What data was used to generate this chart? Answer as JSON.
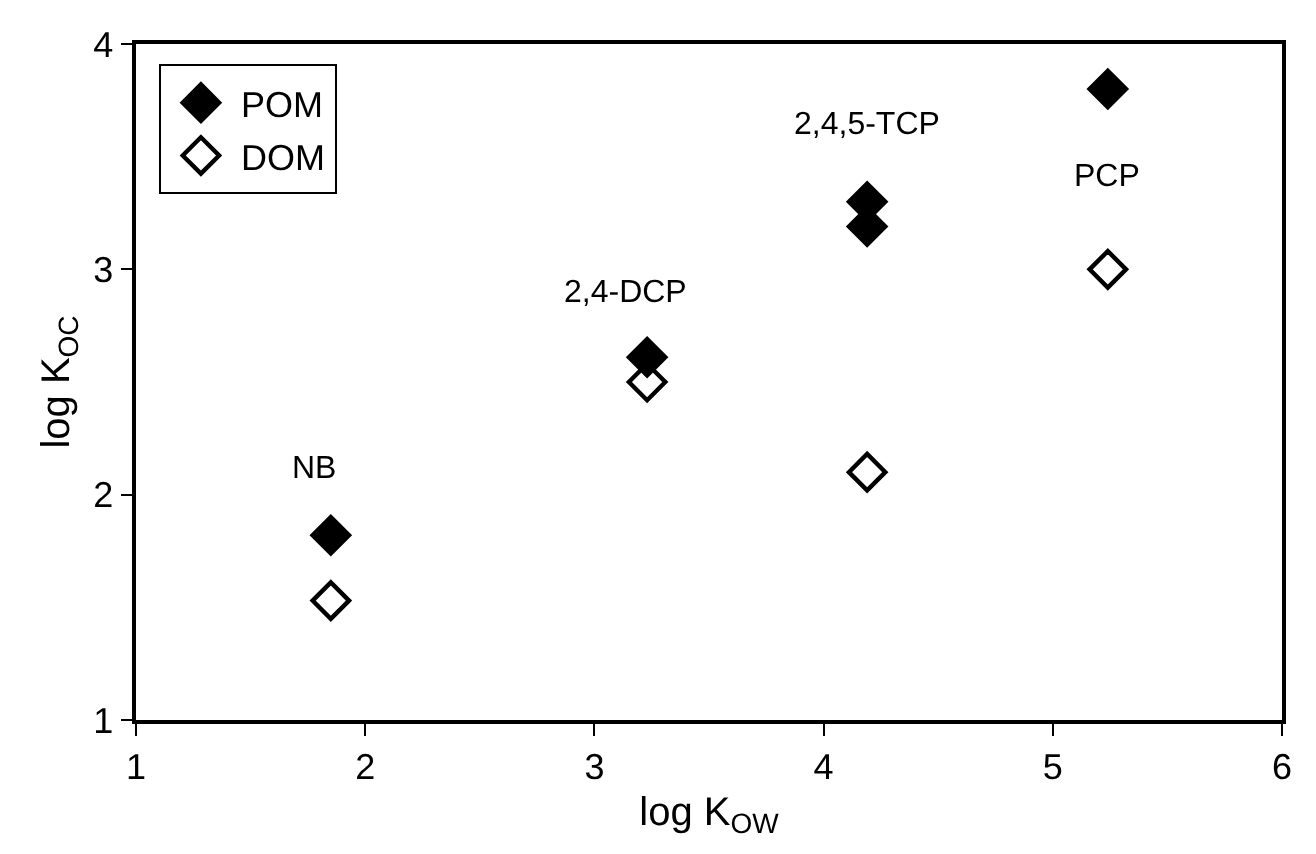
{
  "chart_data": {
    "type": "scatter",
    "xlabel": "log K$_{OW}$",
    "ylabel": "log K$_{OC}$",
    "series": [
      {
        "name": "POM",
        "color": "#000000",
        "marker": "diamond",
        "x": [
          1.85,
          3.23,
          4.19,
          4.19,
          5.24
        ],
        "values": [
          1.82,
          2.61,
          3.3,
          3.19,
          3.8
        ]
      },
      {
        "name": "DOM",
        "color": "#000000",
        "marker": "diamond-open",
        "x": [
          1.85,
          3.23,
          4.19,
          5.24
        ],
        "values": [
          1.53,
          2.5,
          2.1,
          3.0
        ]
      }
    ],
    "annotations": [
      {
        "text": "NB",
        "x": 1.85,
        "y": 1.82
      },
      {
        "text": "2,4-DCP",
        "x": 3.23,
        "y": 2.61
      },
      {
        "text": "2,4,5-TCP",
        "x": 4.19,
        "y": 3.3
      },
      {
        "text": "PCP",
        "x": 5.24,
        "y": 3.0
      }
    ],
    "xlim": [
      1,
      6
    ],
    "xticks": [
      1,
      2,
      3,
      4,
      5,
      6
    ],
    "ylim": [
      1,
      4
    ],
    "yticks": [
      1,
      2,
      3,
      4
    ],
    "grid": false,
    "legend": "top left"
  }
}
